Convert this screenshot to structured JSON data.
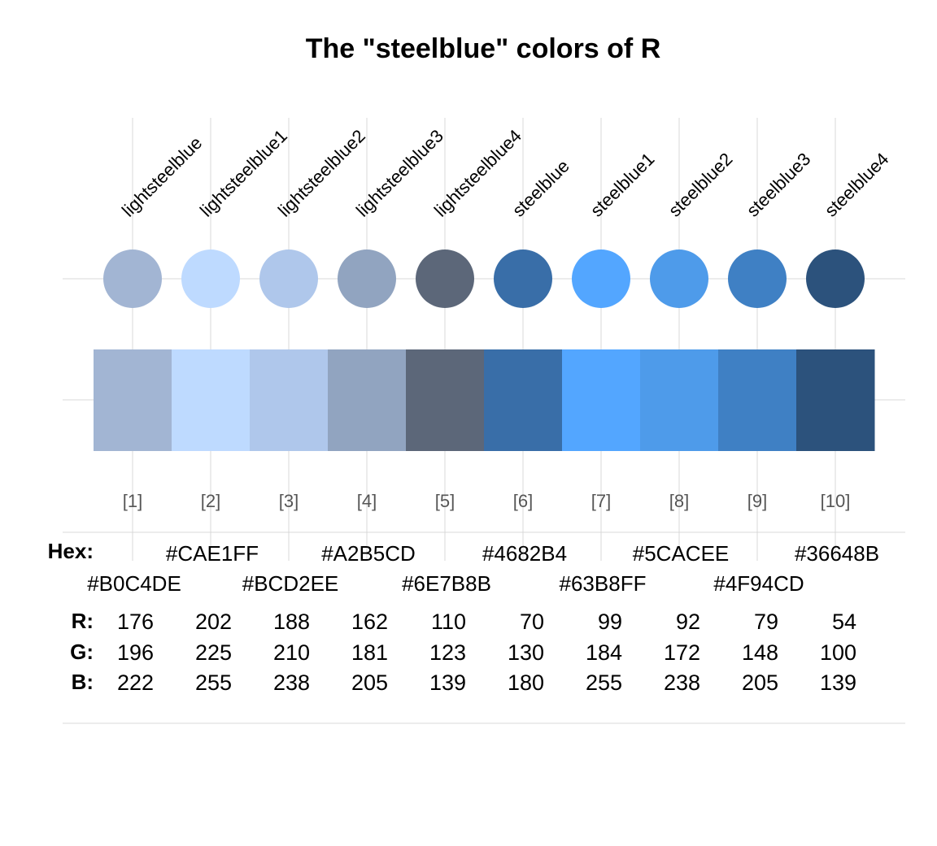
{
  "chart_data": {
    "type": "table",
    "title": "The \"steelblue\" colors of R",
    "colors": [
      {
        "name": "lightsteelblue",
        "index": "[1]",
        "hex": "#B0C4DE",
        "r": 176,
        "g": 196,
        "b": 222
      },
      {
        "name": "lightsteelblue1",
        "index": "[2]",
        "hex": "#CAE1FF",
        "r": 202,
        "g": 225,
        "b": 255
      },
      {
        "name": "lightsteelblue2",
        "index": "[3]",
        "hex": "#BCD2EE",
        "r": 188,
        "g": 210,
        "b": 238
      },
      {
        "name": "lightsteelblue3",
        "index": "[4]",
        "hex": "#A2B5CD",
        "r": 162,
        "g": 181,
        "b": 205
      },
      {
        "name": "lightsteelblue4",
        "index": "[5]",
        "hex": "#6E7B8B",
        "r": 110,
        "g": 123,
        "b": 139
      },
      {
        "name": "steelblue",
        "index": "[6]",
        "hex": "#4682B4",
        "r": 70,
        "g": 130,
        "b": 180
      },
      {
        "name": "steelblue1",
        "index": "[7]",
        "hex": "#63B8FF",
        "r": 99,
        "g": 184,
        "b": 255
      },
      {
        "name": "steelblue2",
        "index": "[8]",
        "hex": "#5CACEE",
        "r": 92,
        "g": 172,
        "b": 238
      },
      {
        "name": "steelblue3",
        "index": "[9]",
        "hex": "#4F94CD",
        "r": 79,
        "g": 148,
        "b": 205
      },
      {
        "name": "steelblue4",
        "index": "[10]",
        "hex": "#36648B",
        "r": 54,
        "g": 100,
        "b": 139
      }
    ],
    "row_labels": {
      "hex": "Hex:",
      "r": "R:",
      "g": "G:",
      "b": "B:"
    },
    "grid": true
  },
  "rendered_colors": {
    "note_free": true,
    "swatch_display": [
      "#A2B5D3",
      "#BEDAFF",
      "#AFC7EB",
      "#91A4C0",
      "#5C6779",
      "#396EA8",
      "#53A6FF",
      "#4E9BEA",
      "#3F80C4",
      "#2C527C"
    ]
  }
}
